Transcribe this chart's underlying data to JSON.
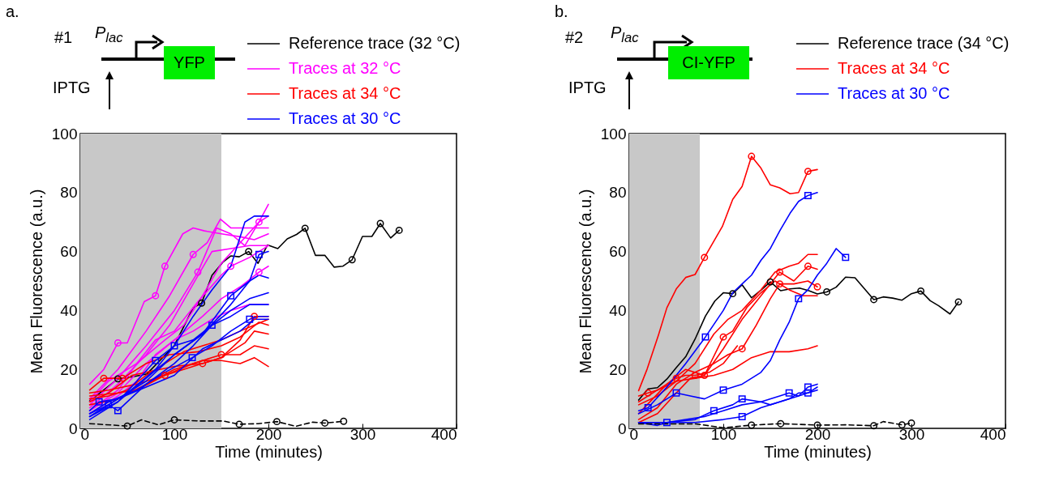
{
  "chart_data": [
    {
      "type": "line",
      "title": "a.",
      "xlabel": "Time (minutes)",
      "ylabel": "Mean Fluorescence (a.u.)",
      "xlim": [
        0,
        400
      ],
      "ylim": [
        0,
        100
      ],
      "xticks": [
        0,
        100,
        200,
        300,
        400
      ],
      "yticks": [
        0,
        20,
        40,
        60,
        80,
        100
      ],
      "grid": false,
      "legend": "top",
      "annotations": [
        "#1",
        "P$_{lac}$",
        "YFP",
        "IPTG"
      ],
      "bands": [
        {
          "axis": "x",
          "from": 0,
          "to": 150,
          "color": "#c8c8c8"
        }
      ],
      "series": [
        {
          "name": "Reference trace (32 °C)",
          "color": "#000000",
          "x": [
            10,
            40,
            57,
            71,
            100,
            120,
            129,
            140,
            152,
            160,
            169,
            179,
            189,
            199,
            210,
            220,
            230,
            239,
            250,
            260,
            270,
            279,
            289,
            300,
            310,
            319,
            330,
            339
          ],
          "values": [
            9.3,
            16.8,
            17.6,
            18.5,
            28.1,
            40.9,
            42.5,
            51.9,
            56.5,
            58.5,
            58.2,
            60,
            56,
            62.2,
            61,
            64.3,
            65.8,
            67.9,
            58.7,
            58.7,
            54.7,
            55,
            57.2,
            65.1,
            65.1,
            69.5,
            64.6,
            67.2
          ]
        },
        {
          "name": "Traces at 32 °C",
          "color": "#ff00ff",
          "x": [
            10,
            25,
            40,
            50,
            68,
            80,
            90,
            109,
            120,
            132,
            150,
            170,
            185,
            200
          ],
          "values": [
            15,
            20,
            29,
            29,
            43,
            45,
            55,
            66,
            68,
            67,
            66,
            65,
            64,
            66
          ]
        },
        {
          "color": "#ff00ff",
          "x": [
            10,
            40,
            70,
            95,
            120,
            135,
            149,
            160,
            180,
            200
          ],
          "values": [
            10,
            20,
            33,
            45,
            59,
            63,
            71,
            68,
            68,
            68
          ]
        },
        {
          "color": "#ff00ff",
          "x": [
            10,
            40,
            70,
            100,
            125,
            145,
            160,
            175,
            190,
            200
          ],
          "values": [
            8,
            17,
            28,
            40,
            53,
            68,
            66,
            62,
            70,
            76
          ]
        },
        {
          "color": "#ff00ff",
          "x": [
            10,
            40,
            70,
            95,
            120,
            140,
            160,
            180,
            200
          ],
          "values": [
            7,
            15,
            25,
            35,
            49,
            60,
            61,
            62,
            62
          ]
        },
        {
          "color": "#ff00ff",
          "x": [
            10,
            40,
            60,
            80,
            100,
            125,
            150,
            160,
            180,
            200
          ],
          "values": [
            6,
            13,
            22,
            30,
            33,
            43,
            52,
            55,
            58,
            62
          ]
        },
        {
          "color": "#ff00ff",
          "x": [
            10,
            40,
            70,
            100,
            130,
            150,
            170,
            190,
            200
          ],
          "values": [
            6,
            12,
            22,
            30,
            38,
            44,
            48,
            53,
            55
          ]
        },
        {
          "color": "#ff00ff",
          "x": [
            10,
            40,
            60,
            80,
            100,
            120,
            140,
            160,
            180,
            200
          ],
          "values": [
            5,
            11,
            16,
            25,
            30,
            33,
            37,
            40,
            42,
            42
          ]
        },
        {
          "color": "#ff00ff",
          "x": [
            10,
            30,
            60,
            90,
            110,
            130,
            150,
            170,
            190,
            200
          ],
          "values": [
            9,
            16,
            22,
            30,
            35,
            45,
            56,
            63,
            70,
            72
          ]
        },
        {
          "name": "Traces at 34 °C",
          "color": "#ff0000",
          "x": [
            10,
            30,
            60,
            90,
            120,
            150,
            170,
            185,
            200
          ],
          "values": [
            12,
            13,
            15,
            18,
            21,
            24,
            30,
            38,
            38
          ]
        },
        {
          "color": "#ff0000",
          "x": [
            10,
            30,
            50,
            70,
            90,
            110,
            130,
            150,
            170,
            185,
            200
          ],
          "values": [
            10,
            11,
            13,
            18,
            22,
            26,
            28,
            30,
            33,
            35,
            37
          ]
        },
        {
          "color": "#ff0000",
          "x": [
            10,
            30,
            55,
            70,
            100,
            130,
            150,
            175,
            185,
            200
          ],
          "values": [
            9,
            12,
            18,
            19,
            21,
            22,
            24,
            29,
            33,
            32
          ]
        },
        {
          "color": "#ff0000",
          "x": [
            10,
            40,
            60,
            90,
            120,
            150,
            170,
            185,
            200
          ],
          "values": [
            11,
            12,
            13,
            18,
            22,
            25,
            25,
            28,
            27
          ]
        },
        {
          "color": "#ff0000",
          "x": [
            10,
            40,
            70,
            100,
            130,
            150,
            170,
            185,
            200
          ],
          "values": [
            8,
            10,
            15,
            20,
            23,
            23,
            22,
            24,
            21
          ]
        },
        {
          "color": "#ff0000",
          "x": [
            10,
            25,
            45,
            70,
            95,
            125,
            150,
            170,
            190,
            200
          ],
          "values": [
            13,
            17,
            17,
            22,
            25,
            26,
            28,
            31,
            36,
            35
          ]
        },
        {
          "name": "Traces at 30 °C",
          "color": "#0000ff",
          "x": [
            10,
            30,
            50,
            80,
            100,
            120,
            140,
            160,
            175,
            185,
            200
          ],
          "values": [
            5,
            8,
            12,
            20,
            28,
            38,
            47,
            55,
            70,
            72,
            72
          ]
        },
        {
          "color": "#0000ff",
          "x": [
            10,
            40,
            70,
            100,
            130,
            160,
            180,
            190,
            200
          ],
          "values": [
            4,
            9,
            17,
            25,
            32,
            42,
            50,
            59,
            60
          ]
        },
        {
          "color": "#0000ff",
          "x": [
            10,
            20,
            40,
            70,
            100,
            130,
            160,
            180,
            190,
            200
          ],
          "values": [
            6,
            9,
            10,
            16,
            25,
            32,
            45,
            50,
            52,
            51
          ]
        },
        {
          "color": "#0000ff",
          "x": [
            10,
            30,
            40,
            70,
            100,
            120,
            140,
            160,
            180,
            200
          ],
          "values": [
            4,
            8,
            6,
            15,
            22,
            28,
            35,
            40,
            44,
            46
          ]
        },
        {
          "color": "#0000ff",
          "x": [
            10,
            40,
            80,
            100,
            120,
            140,
            160,
            180,
            200
          ],
          "values": [
            3,
            9,
            23,
            28,
            30,
            35,
            38,
            42,
            42
          ]
        },
        {
          "color": "#0000ff",
          "x": [
            10,
            30,
            60,
            90,
            119,
            140,
            160,
            180,
            190,
            200
          ],
          "values": [
            5,
            9,
            13,
            19,
            24,
            28,
            33,
            37,
            38,
            38
          ]
        },
        {
          "color": "#0000ff",
          "x": [
            10,
            40,
            70,
            100,
            130,
            150,
            170,
            185,
            200
          ],
          "values": [
            4,
            10,
            14,
            18,
            27,
            30,
            33,
            37,
            37
          ]
        },
        {
          "color": "#000000",
          "line_style": "dashed",
          "x": [
            10,
            50,
            65,
            83,
            100,
            126,
            152,
            169,
            189,
            209,
            229,
            247,
            260,
            280
          ],
          "values": [
            1.6,
            0.8,
            2.9,
            1.2,
            2.9,
            2.5,
            2.5,
            1.4,
            1.6,
            2.3,
            0.7,
            2.1,
            1.8,
            2.4
          ]
        },
        {
          "type": "scatter",
          "marker": "circle",
          "color": "#000000",
          "x": [
            40,
            129,
            179,
            239,
            289,
            319,
            339,
            50,
            100,
            169,
            209,
            260,
            280
          ],
          "values": [
            16.8,
            42.5,
            60,
            67.9,
            57.2,
            69.5,
            67.2,
            0.8,
            2.9,
            1.4,
            2.3,
            1.8,
            2.4
          ]
        },
        {
          "type": "scatter",
          "marker": "circle",
          "color": "#ff00ff",
          "x": [
            40,
            80,
            90,
            120,
            125,
            160,
            190,
            190
          ],
          "values": [
            29,
            45,
            55,
            59,
            53,
            55,
            53,
            70
          ]
        },
        {
          "type": "scatter",
          "marker": "circle",
          "color": "#ff0000",
          "x": [
            25,
            45,
            90,
            130,
            150,
            185
          ],
          "values": [
            17,
            17,
            18,
            22,
            25,
            38
          ]
        },
        {
          "type": "scatter",
          "marker": "square",
          "color": "#0000ff",
          "x": [
            20,
            30,
            40,
            80,
            100,
            119,
            140,
            160,
            180,
            190
          ],
          "values": [
            9,
            8,
            6,
            23,
            28,
            24,
            35,
            45,
            37,
            59
          ]
        }
      ]
    },
    {
      "type": "line",
      "title": "b.",
      "xlabel": "Time (minutes)",
      "ylabel": "Mean Fluorescence (a.u.)",
      "xlim": [
        0,
        400
      ],
      "ylim": [
        0,
        100
      ],
      "xticks": [
        0,
        100,
        200,
        300,
        400
      ],
      "yticks": [
        0,
        20,
        40,
        60,
        80,
        100
      ],
      "grid": false,
      "legend": "top",
      "annotations": [
        "#2",
        "P$_{lac}$",
        "CI-YFP",
        "IPTG"
      ],
      "bands": [
        {
          "axis": "x",
          "from": 0,
          "to": 75,
          "color": "#c8c8c8"
        }
      ],
      "series": [
        {
          "name": "Reference trace (34 °C)",
          "color": "#000000",
          "x": [
            10,
            20,
            30,
            40,
            50,
            60,
            70,
            81,
            91,
            100,
            110,
            120,
            130,
            140,
            150,
            161,
            171,
            181,
            191,
            200,
            210,
            220,
            230,
            240,
            250,
            260,
            270,
            280,
            290,
            300,
            310,
            320,
            329,
            341,
            350
          ],
          "values": [
            9.6,
            13.4,
            13.8,
            16.7,
            20.6,
            24.3,
            30.3,
            38.1,
            43.2,
            46,
            45.7,
            48.7,
            44.3,
            46.9,
            49.7,
            46.7,
            47.3,
            47.6,
            46.7,
            45.6,
            46.3,
            47.9,
            51.3,
            51.1,
            47.4,
            43.7,
            44.6,
            44.2,
            43.5,
            45.7,
            46.6,
            43.3,
            41.6,
            38.8,
            42.9
          ]
        },
        {
          "name": "Traces at 34 °C",
          "color": "#ff0000",
          "x": [
            10,
            19,
            31,
            40,
            50,
            60,
            70,
            80,
            99,
            110,
            120,
            130,
            140,
            150,
            160,
            171,
            180,
            190,
            200
          ],
          "values": [
            12.8,
            20.1,
            31.6,
            40.9,
            47.3,
            51.2,
            52.2,
            58,
            68.5,
            77.7,
            82.1,
            92.3,
            88.3,
            82.6,
            81.6,
            79.6,
            80,
            87.2,
            87.8
          ]
        },
        {
          "color": "#ff0000",
          "x": [
            10,
            30,
            50,
            70,
            90,
            105,
            120,
            140,
            155,
            170,
            180,
            190,
            200
          ],
          "values": [
            8,
            11,
            16,
            22,
            32,
            37,
            40,
            47,
            53,
            55,
            56,
            59,
            59
          ]
        },
        {
          "color": "#ff0000",
          "x": [
            10,
            25,
            40,
            60,
            80,
            100,
            120,
            140,
            160,
            175,
            190,
            200
          ],
          "values": [
            5,
            10,
            15,
            20,
            18,
            27,
            37,
            45,
            53,
            50,
            55,
            54
          ]
        },
        {
          "color": "#ff0000",
          "x": [
            10,
            30,
            50,
            70,
            90,
            105,
            120,
            135,
            150,
            160,
            175,
            190,
            200
          ],
          "values": [
            3,
            7,
            15,
            19,
            22,
            25,
            27,
            35,
            44,
            49,
            49,
            50,
            48
          ]
        },
        {
          "color": "#ff0000",
          "x": [
            10,
            30,
            50,
            65,
            80,
            100,
            110,
            125,
            140,
            155,
            170,
            185,
            200
          ],
          "values": [
            2,
            5,
            12,
            17,
            18,
            31,
            33,
            41,
            46,
            50,
            47,
            45,
            45
          ]
        },
        {
          "color": "#ff0000",
          "x": [
            10,
            30,
            50,
            70,
            90,
            110,
            130,
            150,
            170,
            190,
            200
          ],
          "values": [
            9,
            13,
            16,
            17,
            18,
            20,
            24,
            26,
            26,
            27,
            28
          ]
        },
        {
          "color": "#ff0000",
          "x": [
            10,
            20,
            30,
            40,
            50,
            60,
            70,
            85,
            100,
            115
          ],
          "values": [
            11,
            12,
            13,
            15,
            17,
            18,
            18,
            19,
            22,
            28
          ]
        },
        {
          "name": "Traces at 30 °C",
          "color": "#0000ff",
          "x": [
            10,
            20,
            40,
            60,
            81,
            100,
            110,
            120,
            130,
            140,
            150,
            160,
            171,
            180,
            190,
            200
          ],
          "values": [
            6,
            7,
            14,
            22,
            31,
            40,
            46,
            49,
            52,
            57,
            61,
            67,
            73,
            77,
            79,
            80
          ]
        },
        {
          "color": "#0000ff",
          "x": [
            10,
            30,
            50,
            65,
            80,
            100,
            120,
            130,
            140,
            150,
            160,
            170,
            180,
            190,
            200,
            210,
            220,
            230
          ],
          "values": [
            5,
            8,
            12,
            11,
            10,
            13,
            15,
            17,
            19,
            23,
            30,
            36,
            44,
            47,
            52,
            56,
            61,
            58
          ]
        },
        {
          "color": "#0000ff",
          "x": [
            10,
            40,
            70,
            90,
            110,
            120,
            140,
            160,
            170,
            180,
            190,
            200
          ],
          "values": [
            2,
            2,
            3,
            6,
            8,
            10,
            9,
            11,
            12,
            11,
            14,
            15
          ]
        },
        {
          "color": "#0000ff",
          "x": [
            10,
            40,
            70,
            100,
            120,
            140,
            160,
            180,
            190,
            200
          ],
          "values": [
            2,
            2,
            2,
            3,
            4,
            7,
            9,
            11,
            12,
            13
          ]
        },
        {
          "color": "#0000ff",
          "x": [
            10,
            30,
            40,
            60,
            80,
            100,
            120,
            140,
            150,
            160,
            170,
            180,
            190,
            200
          ],
          "values": [
            2,
            1,
            2,
            3,
            4,
            6,
            8,
            9,
            8,
            9,
            10,
            12,
            12,
            14
          ]
        },
        {
          "color": "#000000",
          "line_style": "dashed",
          "x": [
            10,
            40,
            71,
            100,
            130,
            161,
            200,
            230,
            260,
            270,
            290,
            300
          ],
          "values": [
            1.5,
            1.5,
            1.5,
            0.2,
            1.1,
            1.6,
            1.1,
            1.2,
            0.9,
            2.3,
            1.2,
            1.8
          ]
        },
        {
          "type": "scatter",
          "marker": "circle",
          "color": "#000000",
          "x": [
            110,
            150,
            210,
            260,
            310,
            350,
            130,
            161,
            200,
            260,
            290,
            300
          ],
          "values": [
            45.7,
            49.7,
            46.3,
            43.7,
            46.6,
            42.9,
            1.1,
            1.6,
            1.1,
            0.9,
            1.2,
            1.8
          ]
        },
        {
          "type": "scatter",
          "marker": "circle",
          "color": "#ff0000",
          "x": [
            80,
            130,
            190,
            160,
            190,
            120,
            160,
            200,
            80,
            100,
            20,
            50,
            70
          ],
          "values": [
            58,
            92.3,
            87.2,
            53,
            55,
            27,
            49,
            48,
            18,
            31,
            12,
            17,
            18
          ]
        },
        {
          "type": "scatter",
          "marker": "square",
          "color": "#0000ff",
          "x": [
            20,
            81,
            190,
            50,
            100,
            180,
            230,
            90,
            120,
            170,
            190,
            120,
            190,
            40
          ],
          "values": [
            7,
            31,
            79,
            12,
            13,
            44,
            58,
            6,
            10,
            12,
            14,
            4,
            12,
            2
          ]
        }
      ]
    }
  ]
}
